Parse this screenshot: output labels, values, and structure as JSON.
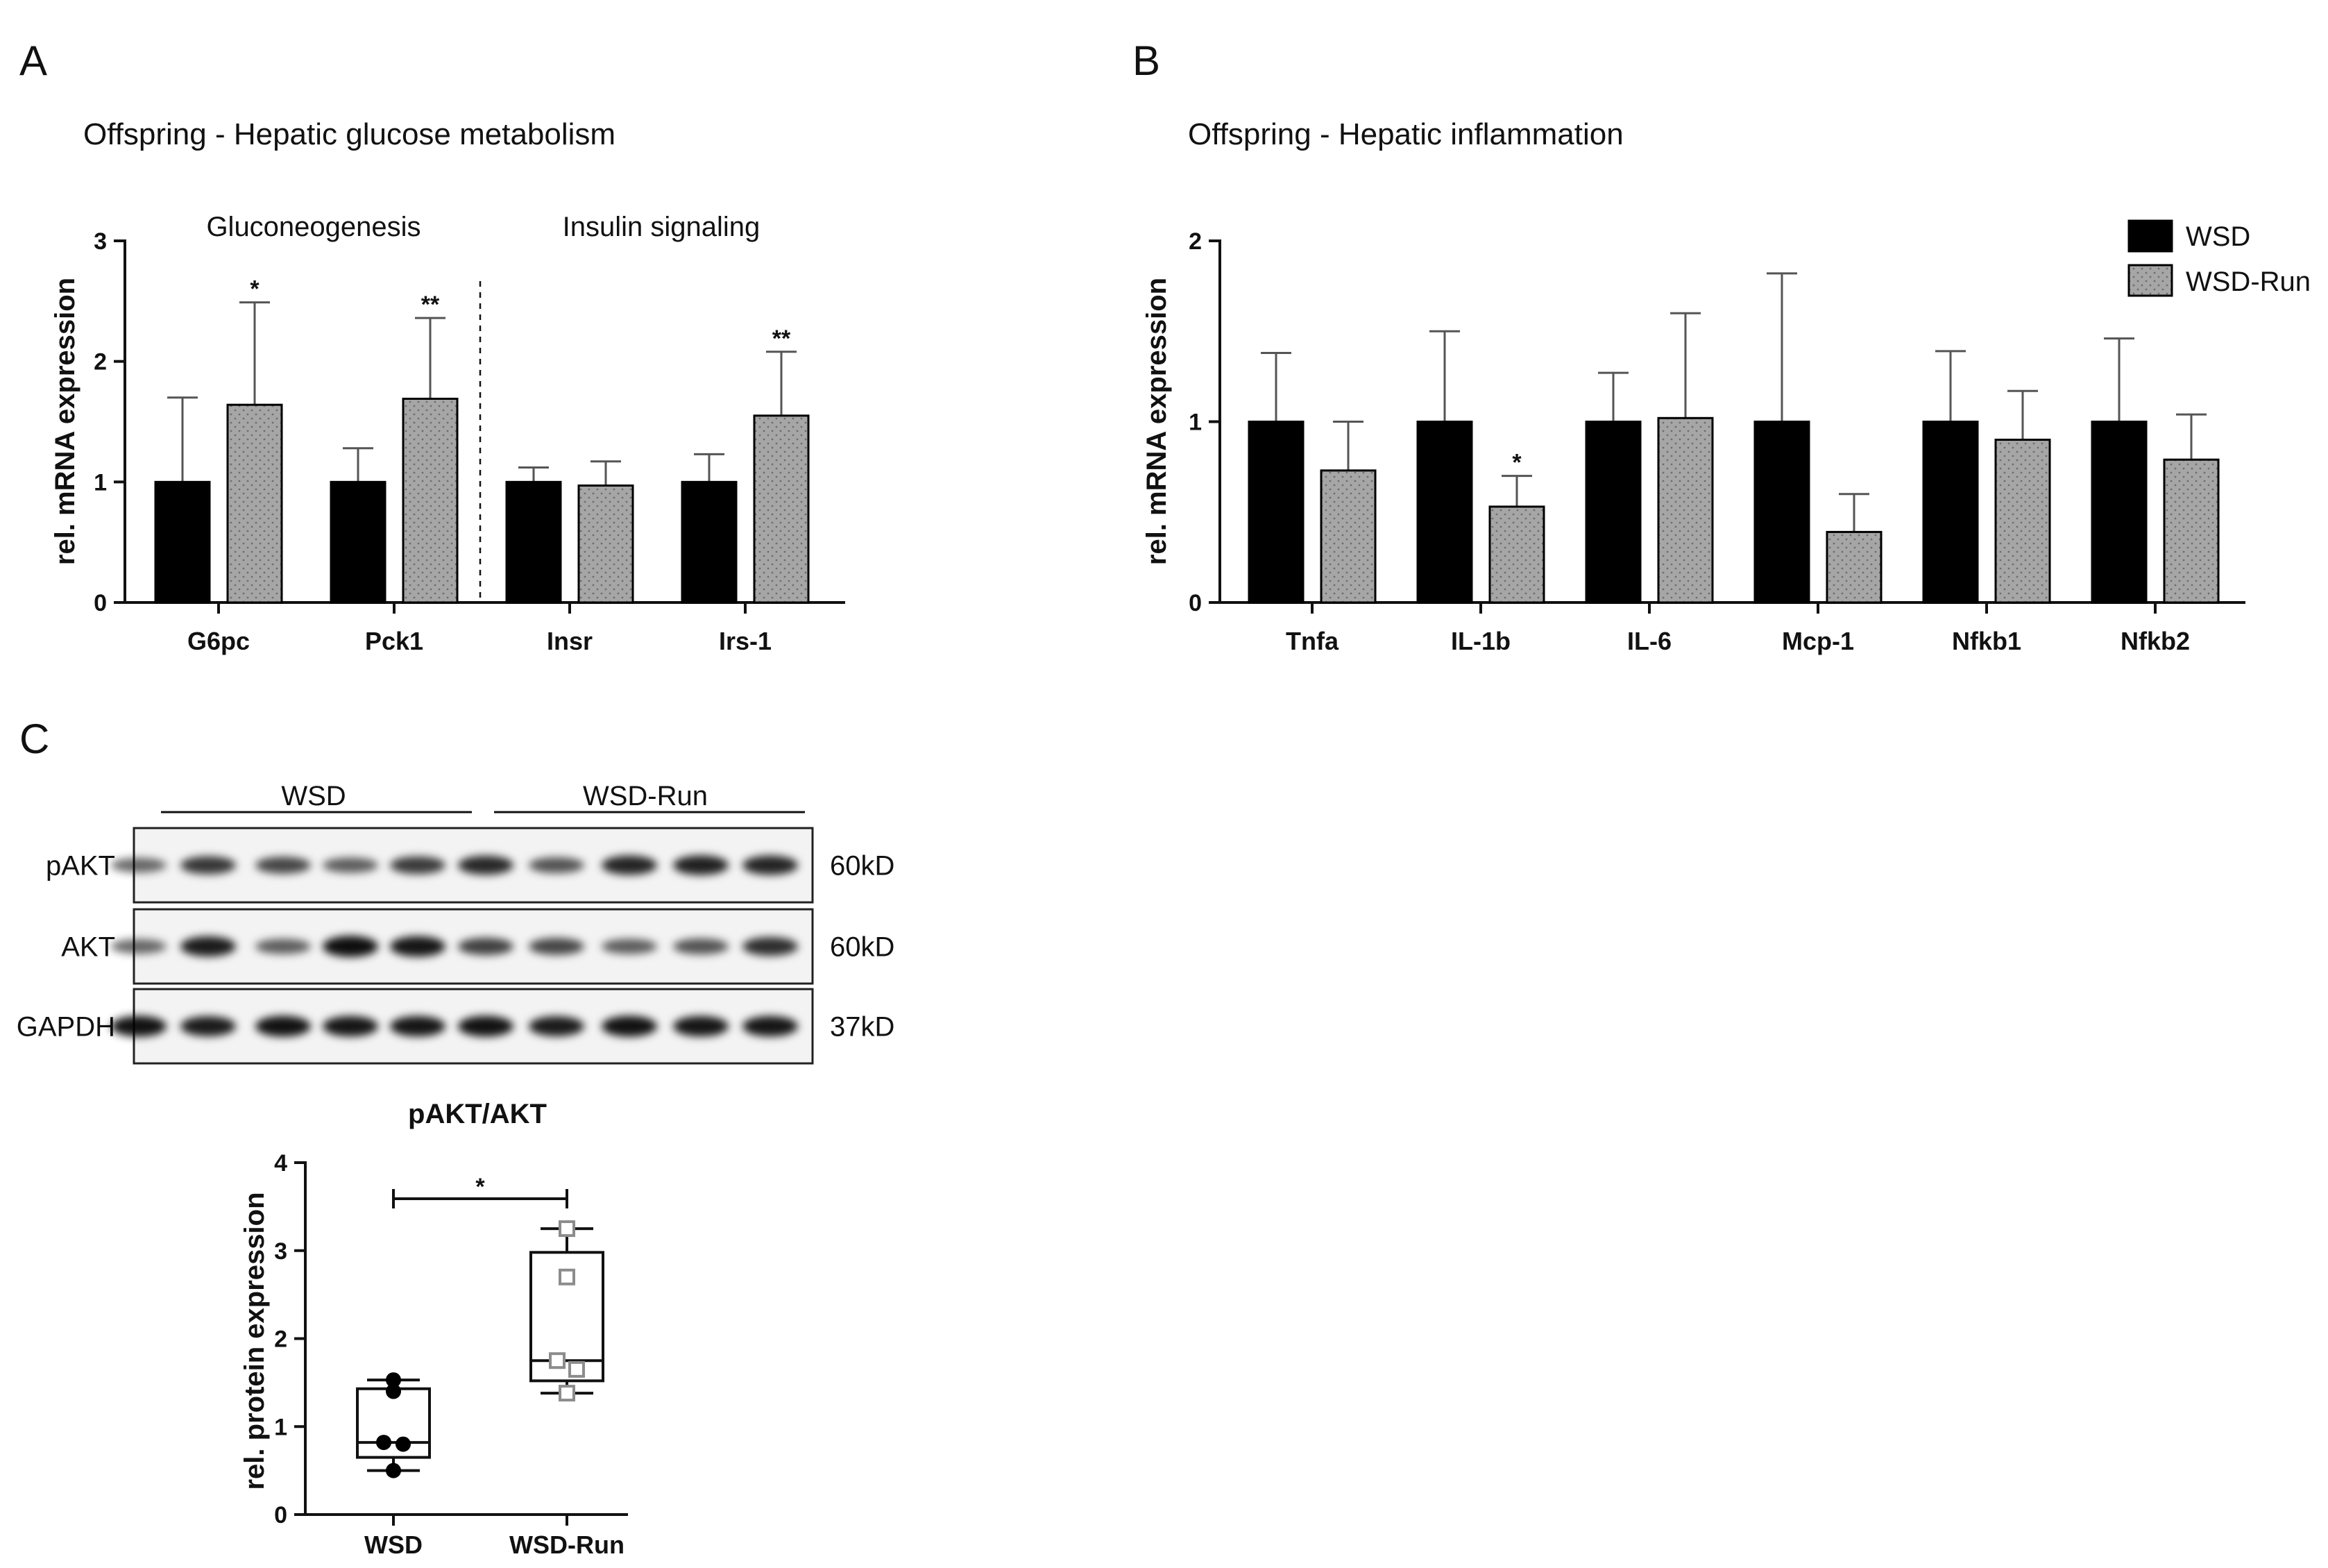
{
  "panels": {
    "A": "A",
    "B": "B",
    "C": "C"
  },
  "colors": {
    "wsd": "#000000",
    "wsd_run": "#a6a6a6",
    "wsd_run_point": "#8c8c8c"
  },
  "chart_data": [
    {
      "type": "bar",
      "panel": "A",
      "title": "Offspring - Hepatic glucose metabolism",
      "groups": [
        "Gluconeogenesis",
        "Insulin signaling"
      ],
      "categories": [
        "G6pc",
        "Pck1",
        "Insr",
        "Irs-1"
      ],
      "ylabel": "rel. mRNA expression",
      "ylim": [
        0,
        3
      ],
      "yticks": [
        "0",
        "1",
        "2",
        "3"
      ],
      "series": [
        {
          "name": "WSD",
          "values": [
            1.0,
            1.0,
            1.0,
            1.0
          ],
          "errors": [
            0.7,
            0.28,
            0.12,
            0.23
          ]
        },
        {
          "name": "WSD-Run",
          "values": [
            1.64,
            1.69,
            0.97,
            1.55
          ],
          "errors": [
            0.85,
            0.67,
            0.2,
            0.53
          ]
        }
      ],
      "significance": [
        "*",
        "**",
        "",
        "**"
      ]
    },
    {
      "type": "bar",
      "panel": "B",
      "title": "Offspring - Hepatic inflammation",
      "categories": [
        "Tnfa",
        "IL-1b",
        "IL-6",
        "Mcp-1",
        "Nfkb1",
        "Nfkb2"
      ],
      "ylabel": "rel. mRNA expression",
      "ylim": [
        0,
        2
      ],
      "yticks": [
        "0",
        "1",
        "2"
      ],
      "legend": [
        "WSD",
        "WSD-Run"
      ],
      "legend_position": "top-right",
      "series": [
        {
          "name": "WSD",
          "values": [
            1.0,
            1.0,
            1.0,
            1.0,
            1.0,
            1.0
          ],
          "errors": [
            0.38,
            0.5,
            0.27,
            0.82,
            0.39,
            0.46
          ]
        },
        {
          "name": "WSD-Run",
          "values": [
            0.73,
            0.53,
            1.02,
            0.39,
            0.9,
            0.79
          ],
          "errors": [
            0.27,
            0.17,
            0.58,
            0.21,
            0.27,
            0.25
          ]
        }
      ],
      "significance": [
        "",
        "*",
        "",
        "",
        "",
        ""
      ]
    },
    {
      "type": "box",
      "panel": "C",
      "title": "pAKT/AKT",
      "categories": [
        "WSD",
        "WSD-Run"
      ],
      "ylabel": "rel. protein expression",
      "ylim": [
        0,
        4
      ],
      "yticks": [
        "0",
        "1",
        "2",
        "3",
        "4"
      ],
      "boxes": [
        {
          "name": "WSD",
          "min": 0.5,
          "q1": 0.65,
          "median": 0.82,
          "q3": 1.43,
          "max": 1.53,
          "points": [
            1.53,
            1.4,
            0.82,
            0.8,
            0.5
          ]
        },
        {
          "name": "WSD-Run",
          "min": 1.38,
          "q1": 1.52,
          "median": 1.75,
          "q3": 2.98,
          "max": 3.25,
          "points": [
            3.25,
            2.7,
            1.75,
            1.65,
            1.38
          ]
        }
      ],
      "significance": "*"
    }
  ],
  "western_blot": {
    "groups": [
      "WSD",
      "WSD-Run"
    ],
    "rows": [
      {
        "label": "pAKT",
        "size": "60kD",
        "intensity": [
          0.45,
          0.7,
          0.62,
          0.5,
          0.68,
          0.78,
          0.55,
          0.8,
          0.82,
          0.8
        ]
      },
      {
        "label": "AKT",
        "size": "60kD",
        "intensity": [
          0.45,
          0.85,
          0.5,
          0.92,
          0.88,
          0.65,
          0.62,
          0.5,
          0.55,
          0.75
        ]
      },
      {
        "label": "GAPDH",
        "size": "37kD",
        "intensity": [
          0.9,
          0.85,
          0.9,
          0.88,
          0.88,
          0.9,
          0.85,
          0.9,
          0.88,
          0.88
        ]
      }
    ]
  }
}
